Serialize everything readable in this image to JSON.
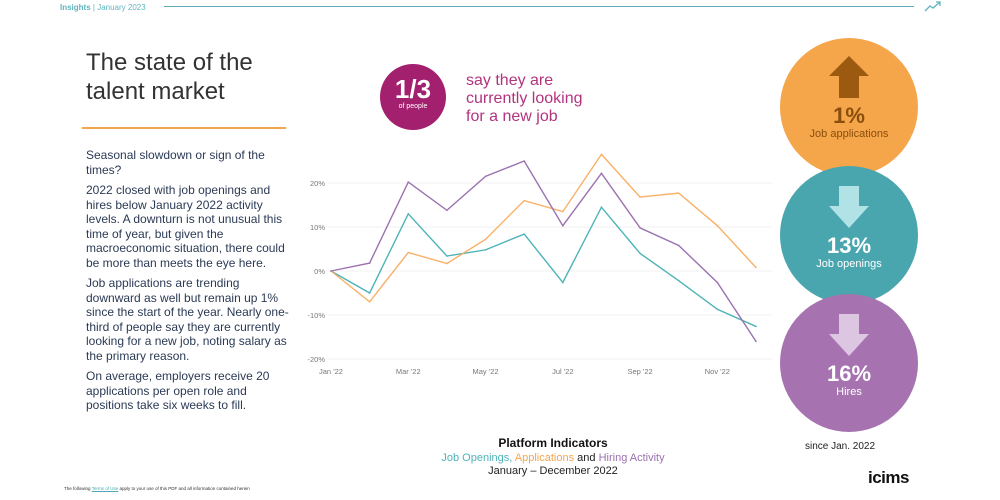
{
  "header": {
    "brand": "Insights",
    "date": "| January 2023"
  },
  "title_lines": [
    "The state of the",
    "talent market"
  ],
  "body": [
    "Seasonal slowdown or sign of the times?",
    "2022 closed with job openings and hires below January 2022 activity levels. A downturn is not unusual this time of year, but given the macroeconomic situation, there could be more than meets the eye here.",
    "Job applications are trending downward as well but remain up 1% since the start of the year. Nearly one-third of people say they are currently looking for a new job, noting salary as the primary reason.",
    "On average, employers receive 20 applications per open role and positions take six weeks to fill."
  ],
  "footer": {
    "pre": "The following",
    "link": "Terms of Use",
    "post": "apply to your use of this PDF and all information contained herein"
  },
  "stat": {
    "value": "1/3",
    "unit": "of people",
    "text": [
      "say they are",
      "currently looking",
      "for a new job"
    ]
  },
  "circles": [
    {
      "pct": "1%",
      "label": "Job applications",
      "direction": "up",
      "color": "#f5a54a",
      "arrow_color": "#9b5a0f",
      "text_color": "#8a4e0c"
    },
    {
      "pct": "13%",
      "label": "Job openings",
      "direction": "down",
      "color": "#49a6ae",
      "arrow_color": "#b1e2e6",
      "text_color": "#ffffff"
    },
    {
      "pct": "16%",
      "label": "Hires",
      "direction": "down",
      "color": "#a673b0",
      "arrow_color": "#dcc6e1",
      "text_color": "#ffffff"
    }
  ],
  "since": "since Jan. 2022",
  "logo": "icims",
  "chart_data": {
    "type": "line",
    "title": "Platform Indicators",
    "subtitle_parts": [
      "Job Openings",
      ", ",
      "Applications",
      " and ",
      "Hiring Activity"
    ],
    "period": "January – December 2022",
    "x": [
      "Jan '22",
      "Feb '22",
      "Mar '22",
      "Apr '22",
      "May '22",
      "Jun '22",
      "Jul '22",
      "Aug '22",
      "Sep '22",
      "Oct '22",
      "Nov '22",
      "Dec '22"
    ],
    "xticks": [
      "Jan '22",
      "Mar '22",
      "May '22",
      "Jul '22",
      "Sep '22",
      "Nov '22"
    ],
    "yticks": [
      20,
      10,
      0,
      -10,
      -20
    ],
    "ytick_labels": [
      "20%",
      "10%",
      "0%",
      "-10%",
      "-20%"
    ],
    "ylim": [
      -22,
      28
    ],
    "grid": true,
    "series": [
      {
        "name": "Job Openings",
        "color": "#4db3b7",
        "values": [
          0,
          -5,
          13,
          3.4,
          4.8,
          8.4,
          -2.6,
          14.5,
          4,
          -2.2,
          -8.7,
          -12.6
        ]
      },
      {
        "name": "Applications",
        "color": "#f9b066",
        "values": [
          0,
          -7,
          4.2,
          1.7,
          7.2,
          16,
          13.5,
          26.5,
          16.8,
          17.7,
          10.3,
          0.8
        ]
      },
      {
        "name": "Hiring Activity",
        "color": "#9b72b0",
        "values": [
          0,
          1.8,
          20.2,
          13.8,
          21.5,
          25,
          10.3,
          22.2,
          9.8,
          5.8,
          -2.6,
          -16
        ]
      }
    ]
  }
}
